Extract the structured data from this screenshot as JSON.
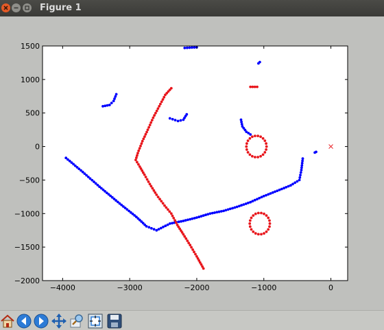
{
  "window": {
    "title": "Figure 1"
  },
  "toolbar": {
    "buttons": [
      {
        "icon": "home-icon",
        "name": "home-button"
      },
      {
        "icon": "arrow-left-icon",
        "name": "back-button"
      },
      {
        "icon": "arrow-right-icon",
        "name": "forward-button"
      },
      {
        "icon": "move-icon",
        "name": "pan-button"
      },
      {
        "icon": "zoom-icon",
        "name": "zoom-button"
      },
      {
        "icon": "subplots-icon",
        "name": "configure-subplots-button"
      },
      {
        "icon": "save-icon",
        "name": "save-button"
      }
    ]
  },
  "chart_data": {
    "type": "scatter",
    "title": "",
    "xlabel": "",
    "ylabel": "",
    "xlim": [
      -4300,
      250
    ],
    "ylim": [
      -2000,
      1500
    ],
    "xticks": [
      -4000,
      -3000,
      -2000,
      -1000,
      0
    ],
    "yticks": [
      1500,
      1000,
      500,
      0,
      -500,
      -1000,
      -1500,
      -2000
    ],
    "xtick_labels": [
      "−4000",
      "−3000",
      "−2000",
      "−1000",
      "0"
    ],
    "ytick_labels": [
      "1500",
      "1000",
      "500",
      "0",
      "−500",
      "−1000",
      "−1500",
      "−2000"
    ],
    "grid": false,
    "colors": {
      "blue": "#0000ff",
      "red": "#e8151b"
    },
    "series": [
      {
        "color": "blue",
        "marker": "dot",
        "segments": [
          [
            [
              -3950,
              -170
            ],
            [
              -3700,
              -380
            ],
            [
              -3450,
              -600
            ],
            [
              -3150,
              -850
            ],
            [
              -2900,
              -1050
            ],
            [
              -2750,
              -1190
            ],
            [
              -2600,
              -1250
            ],
            [
              -2400,
              -1150
            ],
            [
              -2200,
              -1110
            ],
            [
              -2000,
              -1060
            ],
            [
              -1800,
              -1000
            ],
            [
              -1600,
              -960
            ],
            [
              -1400,
              -900
            ],
            [
              -1200,
              -830
            ],
            [
              -1000,
              -740
            ],
            [
              -800,
              -660
            ],
            [
              -600,
              -580
            ],
            [
              -470,
              -500
            ],
            [
              -440,
              -350
            ],
            [
              -420,
              -180
            ]
          ],
          [
            [
              -3400,
              600
            ],
            [
              -3300,
              620
            ],
            [
              -3240,
              680
            ],
            [
              -3200,
              780
            ]
          ],
          [
            [
              -2400,
              420
            ],
            [
              -2280,
              380
            ],
            [
              -2200,
              400
            ],
            [
              -2150,
              480
            ]
          ],
          [
            [
              -2180,
              1470
            ],
            [
              -2000,
              1480
            ]
          ],
          [
            [
              -1340,
              400
            ],
            [
              -1320,
              300
            ],
            [
              -1260,
              220
            ],
            [
              -1200,
              180
            ]
          ],
          [
            [
              -1080,
              1240
            ],
            [
              -1060,
              1260
            ]
          ],
          [
            [
              -240,
              -90
            ],
            [
              -220,
              -80
            ]
          ]
        ]
      },
      {
        "color": "red",
        "marker": "dot",
        "segments": [
          [
            [
              -2380,
              870
            ],
            [
              -2470,
              770
            ],
            [
              -2560,
              600
            ],
            [
              -2650,
              430
            ],
            [
              -2730,
              250
            ],
            [
              -2810,
              80
            ],
            [
              -2880,
              -100
            ],
            [
              -2910,
              -200
            ],
            [
              -2850,
              -300
            ],
            [
              -2780,
              -420
            ],
            [
              -2700,
              -560
            ],
            [
              -2600,
              -720
            ],
            [
              -2480,
              -880
            ],
            [
              -2380,
              -1000
            ],
            [
              -2290,
              -1170
            ],
            [
              -2200,
              -1310
            ],
            [
              -2100,
              -1470
            ],
            [
              -2000,
              -1640
            ],
            [
              -1900,
              -1820
            ]
          ],
          [
            [
              -1200,
              890
            ],
            [
              -1100,
              890
            ]
          ]
        ]
      },
      {
        "color": "red",
        "marker": "dot",
        "rings": [
          {
            "cx": -1110,
            "cy": 0,
            "rx": 150,
            "ry": 160
          },
          {
            "cx": -1060,
            "cy": -1150,
            "rx": 150,
            "ry": 160
          }
        ]
      },
      {
        "color": "red",
        "marker": "x",
        "points": [
          [
            0,
            0
          ]
        ]
      }
    ]
  }
}
